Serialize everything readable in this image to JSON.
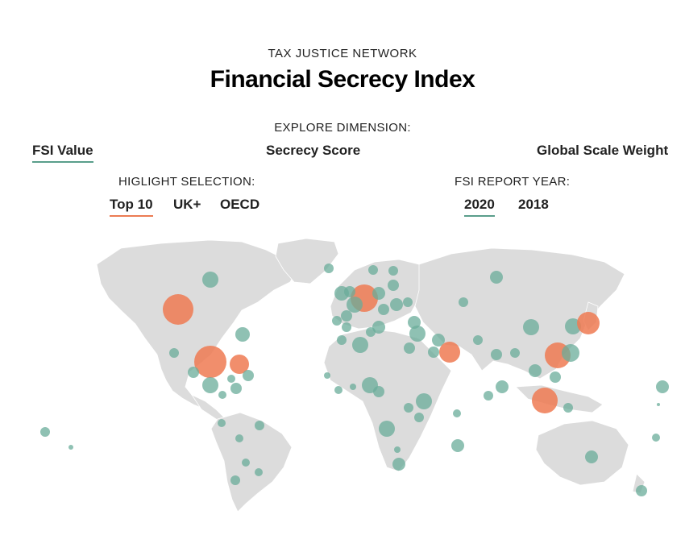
{
  "header": {
    "kicker": "TAX JUSTICE NETWORK",
    "title": "Financial Secrecy Index"
  },
  "dimension": {
    "label": "EXPLORE DIMENSION:",
    "options": [
      "FSI Value",
      "Secrecy Score",
      "Global Scale Weight"
    ],
    "selected": "FSI Value"
  },
  "highlight": {
    "label": "HIGLIGHT SELECTION:",
    "options": [
      "Top 10",
      "UK+",
      "OECD"
    ],
    "selected": "Top 10"
  },
  "year": {
    "label": "FSI REPORT YEAR:",
    "options": [
      "2020",
      "2018"
    ],
    "selected": "2020"
  },
  "colors": {
    "land": "#dcdcdc",
    "bubble": "#6aac99",
    "highlight": "#ef7a52",
    "underline_green": "#5a9e8b",
    "underline_orange": "#ec7b53"
  }
}
